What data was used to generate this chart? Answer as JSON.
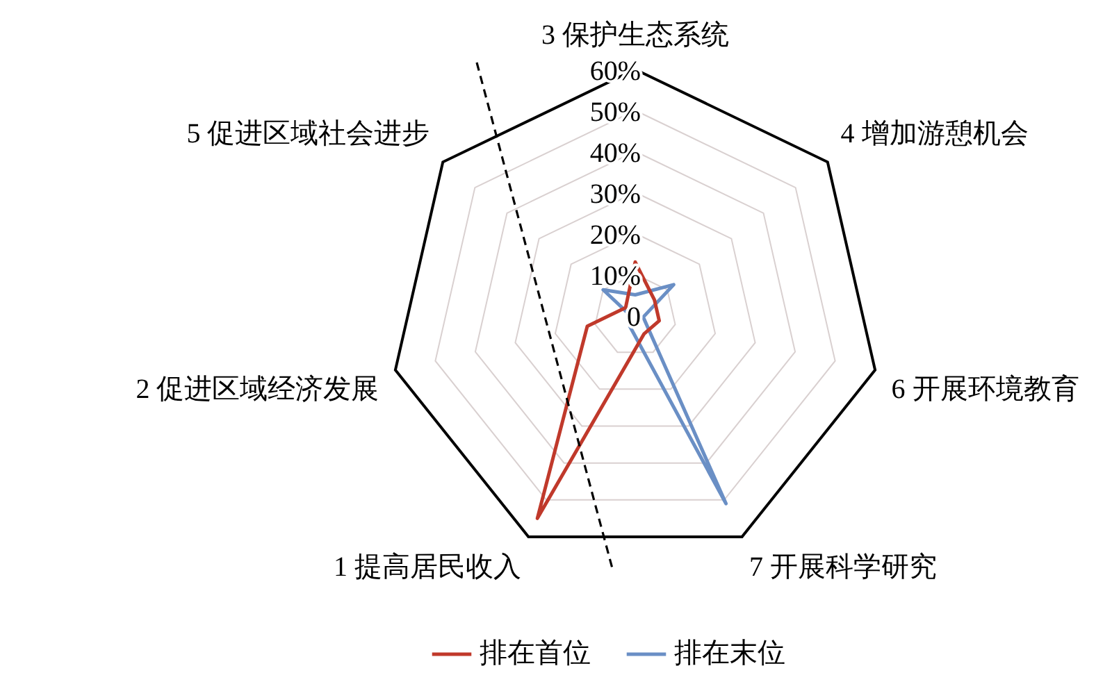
{
  "chart_data": {
    "type": "radar",
    "categories": [
      "3 保护生态系统",
      "4 增加游憩机会",
      "6 开展环境教育",
      "7 开展科学研究",
      "1 提高居民收入",
      "2 促进区域经济发展",
      "5 促进区域社会进步"
    ],
    "series": [
      {
        "name": "排在首位",
        "color": "#c0392b",
        "values": [
          13,
          6,
          6,
          5,
          55,
          12,
          3
        ]
      },
      {
        "name": "排在末位",
        "color": "#6a8fc5",
        "values": [
          5,
          12,
          2,
          51,
          3,
          1,
          10
        ]
      }
    ],
    "ylim": [
      0,
      60
    ],
    "yticks": [
      0,
      {
        "value": 10,
        "label": "10%"
      },
      {
        "value": 20,
        "label": "20%"
      },
      {
        "value": 30,
        "label": "30%"
      },
      {
        "value": 40,
        "label": "40%"
      },
      {
        "value": 50,
        "label": "50%"
      },
      {
        "value": 60,
        "label": "60%"
      }
    ],
    "grid": true,
    "legend": "bottom",
    "marker": "none",
    "line_style": "solid"
  }
}
